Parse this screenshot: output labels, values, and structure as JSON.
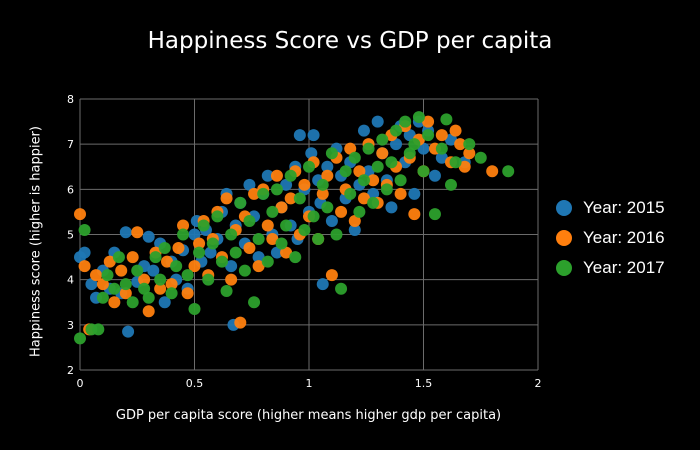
{
  "chart_data": {
    "type": "scatter",
    "title": "Happiness Score vs GDP per capita",
    "xlabel": "GDP per capita score (higher means higher gdp per capita)",
    "ylabel": "Happiness score (higher is happier)",
    "xlim": [
      0,
      2
    ],
    "ylim": [
      2,
      8
    ],
    "xticks": [
      "0",
      "0.5",
      "1",
      "1.5",
      "2"
    ],
    "yticks": [
      "2",
      "3",
      "4",
      "5",
      "6",
      "7",
      "8"
    ],
    "grid": true,
    "legend_position": "right",
    "series": [
      {
        "name": "Year: 2015",
        "color": "#1f77b4",
        "points": [
          [
            0.0,
            4.5
          ],
          [
            0.02,
            4.6
          ],
          [
            0.05,
            3.9
          ],
          [
            0.07,
            3.6
          ],
          [
            0.1,
            4.2
          ],
          [
            0.13,
            3.8
          ],
          [
            0.15,
            4.6
          ],
          [
            0.18,
            3.7
          ],
          [
            0.2,
            5.05
          ],
          [
            0.21,
            2.85
          ],
          [
            0.25,
            3.95
          ],
          [
            0.28,
            4.3
          ],
          [
            0.3,
            4.95
          ],
          [
            0.32,
            4.2
          ],
          [
            0.35,
            4.8
          ],
          [
            0.37,
            3.5
          ],
          [
            0.4,
            4.4
          ],
          [
            0.42,
            4.0
          ],
          [
            0.45,
            4.65
          ],
          [
            0.47,
            3.8
          ],
          [
            0.5,
            5.0
          ],
          [
            0.51,
            5.3
          ],
          [
            0.53,
            4.4
          ],
          [
            0.55,
            5.1
          ],
          [
            0.57,
            4.6
          ],
          [
            0.6,
            4.9
          ],
          [
            0.62,
            5.5
          ],
          [
            0.64,
            5.9
          ],
          [
            0.66,
            4.3
          ],
          [
            0.67,
            3.0
          ],
          [
            0.68,
            5.2
          ],
          [
            0.7,
            5.7
          ],
          [
            0.72,
            4.8
          ],
          [
            0.74,
            6.1
          ],
          [
            0.76,
            5.4
          ],
          [
            0.78,
            4.5
          ],
          [
            0.8,
            5.9
          ],
          [
            0.82,
            6.3
          ],
          [
            0.84,
            5.0
          ],
          [
            0.86,
            4.6
          ],
          [
            0.88,
            5.6
          ],
          [
            0.9,
            6.1
          ],
          [
            0.92,
            5.2
          ],
          [
            0.94,
            6.5
          ],
          [
            0.95,
            4.9
          ],
          [
            0.96,
            7.2
          ],
          [
            0.98,
            6.0
          ],
          [
            1.0,
            5.5
          ],
          [
            1.01,
            6.8
          ],
          [
            1.02,
            7.2
          ],
          [
            1.04,
            6.2
          ],
          [
            1.05,
            5.7
          ],
          [
            1.06,
            3.9
          ],
          [
            1.08,
            6.5
          ],
          [
            1.1,
            5.3
          ],
          [
            1.12,
            6.9
          ],
          [
            1.14,
            6.3
          ],
          [
            1.16,
            5.8
          ],
          [
            1.18,
            6.6
          ],
          [
            1.2,
            5.1
          ],
          [
            1.22,
            6.1
          ],
          [
            1.24,
            7.3
          ],
          [
            1.26,
            6.4
          ],
          [
            1.28,
            5.9
          ],
          [
            1.3,
            7.5
          ],
          [
            1.32,
            6.8
          ],
          [
            1.34,
            6.2
          ],
          [
            1.36,
            5.6
          ],
          [
            1.38,
            7.0
          ],
          [
            1.4,
            7.4
          ],
          [
            1.42,
            6.6
          ],
          [
            1.44,
            7.2
          ],
          [
            1.46,
            5.9
          ],
          [
            1.48,
            7.5
          ],
          [
            1.5,
            6.9
          ],
          [
            1.52,
            7.3
          ],
          [
            1.55,
            6.3
          ],
          [
            1.58,
            6.7
          ],
          [
            1.62,
            7.1
          ],
          [
            1.68,
            6.6
          ]
        ]
      },
      {
        "name": "Year: 2016",
        "color": "#ff7f0e",
        "points": [
          [
            0.0,
            5.45
          ],
          [
            0.02,
            4.3
          ],
          [
            0.04,
            2.9
          ],
          [
            0.07,
            4.1
          ],
          [
            0.1,
            3.9
          ],
          [
            0.13,
            4.4
          ],
          [
            0.15,
            3.5
          ],
          [
            0.18,
            4.2
          ],
          [
            0.2,
            3.7
          ],
          [
            0.23,
            4.5
          ],
          [
            0.25,
            5.05
          ],
          [
            0.28,
            4.0
          ],
          [
            0.3,
            3.3
          ],
          [
            0.33,
            4.6
          ],
          [
            0.35,
            3.8
          ],
          [
            0.38,
            4.4
          ],
          [
            0.4,
            3.9
          ],
          [
            0.43,
            4.7
          ],
          [
            0.45,
            5.2
          ],
          [
            0.47,
            3.7
          ],
          [
            0.5,
            4.3
          ],
          [
            0.52,
            4.8
          ],
          [
            0.54,
            5.3
          ],
          [
            0.56,
            4.1
          ],
          [
            0.58,
            4.9
          ],
          [
            0.6,
            5.5
          ],
          [
            0.62,
            4.5
          ],
          [
            0.64,
            5.8
          ],
          [
            0.66,
            4.0
          ],
          [
            0.68,
            5.1
          ],
          [
            0.7,
            3.05
          ],
          [
            0.72,
            5.4
          ],
          [
            0.74,
            4.7
          ],
          [
            0.76,
            5.9
          ],
          [
            0.78,
            4.3
          ],
          [
            0.8,
            6.0
          ],
          [
            0.82,
            5.2
          ],
          [
            0.84,
            4.9
          ],
          [
            0.86,
            6.3
          ],
          [
            0.88,
            5.6
          ],
          [
            0.9,
            4.6
          ],
          [
            0.92,
            5.8
          ],
          [
            0.94,
            6.4
          ],
          [
            0.96,
            5.0
          ],
          [
            0.98,
            6.1
          ],
          [
            1.0,
            5.4
          ],
          [
            1.02,
            6.6
          ],
          [
            1.04,
            4.9
          ],
          [
            1.06,
            5.9
          ],
          [
            1.08,
            6.3
          ],
          [
            1.1,
            4.1
          ],
          [
            1.12,
            6.7
          ],
          [
            1.14,
            5.5
          ],
          [
            1.16,
            6.0
          ],
          [
            1.18,
            6.9
          ],
          [
            1.2,
            5.3
          ],
          [
            1.22,
            6.4
          ],
          [
            1.24,
            5.8
          ],
          [
            1.26,
            7.0
          ],
          [
            1.28,
            6.2
          ],
          [
            1.3,
            5.7
          ],
          [
            1.32,
            6.8
          ],
          [
            1.34,
            6.1
          ],
          [
            1.36,
            7.2
          ],
          [
            1.38,
            6.5
          ],
          [
            1.4,
            5.9
          ],
          [
            1.42,
            7.4
          ],
          [
            1.44,
            6.7
          ],
          [
            1.46,
            5.45
          ],
          [
            1.48,
            7.1
          ],
          [
            1.5,
            6.4
          ],
          [
            1.52,
            7.5
          ],
          [
            1.55,
            6.9
          ],
          [
            1.58,
            7.2
          ],
          [
            1.62,
            6.6
          ],
          [
            1.66,
            7.0
          ],
          [
            1.7,
            6.8
          ],
          [
            1.8,
            6.4
          ],
          [
            1.68,
            6.5
          ],
          [
            1.64,
            7.3
          ]
        ]
      },
      {
        "name": "Year: 2017",
        "color": "#2ca02c",
        "points": [
          [
            0.0,
            2.7
          ],
          [
            0.02,
            5.1
          ],
          [
            0.05,
            2.9
          ],
          [
            0.08,
            2.9
          ],
          [
            0.1,
            3.6
          ],
          [
            0.12,
            4.1
          ],
          [
            0.15,
            3.8
          ],
          [
            0.17,
            4.5
          ],
          [
            0.2,
            3.9
          ],
          [
            0.23,
            3.5
          ],
          [
            0.25,
            4.2
          ],
          [
            0.28,
            3.8
          ],
          [
            0.3,
            3.6
          ],
          [
            0.33,
            4.5
          ],
          [
            0.35,
            4.0
          ],
          [
            0.37,
            4.7
          ],
          [
            0.4,
            3.7
          ],
          [
            0.42,
            4.3
          ],
          [
            0.45,
            5.0
          ],
          [
            0.47,
            4.1
          ],
          [
            0.5,
            3.35
          ],
          [
            0.52,
            4.6
          ],
          [
            0.54,
            5.2
          ],
          [
            0.56,
            4.0
          ],
          [
            0.58,
            4.8
          ],
          [
            0.6,
            5.4
          ],
          [
            0.62,
            4.4
          ],
          [
            0.64,
            3.75
          ],
          [
            0.66,
            5.0
          ],
          [
            0.68,
            4.6
          ],
          [
            0.7,
            5.7
          ],
          [
            0.72,
            4.2
          ],
          [
            0.74,
            5.3
          ],
          [
            0.76,
            3.5
          ],
          [
            0.78,
            4.9
          ],
          [
            0.8,
            5.9
          ],
          [
            0.82,
            4.4
          ],
          [
            0.84,
            5.5
          ],
          [
            0.86,
            6.0
          ],
          [
            0.88,
            4.8
          ],
          [
            0.9,
            5.2
          ],
          [
            0.92,
            6.3
          ],
          [
            0.94,
            4.5
          ],
          [
            0.96,
            5.8
          ],
          [
            0.98,
            5.1
          ],
          [
            1.0,
            6.5
          ],
          [
            1.02,
            5.4
          ],
          [
            1.04,
            4.9
          ],
          [
            1.06,
            6.1
          ],
          [
            1.08,
            5.6
          ],
          [
            1.1,
            6.8
          ],
          [
            1.12,
            5.0
          ],
          [
            1.14,
            3.8
          ],
          [
            1.16,
            6.4
          ],
          [
            1.18,
            5.9
          ],
          [
            1.2,
            6.7
          ],
          [
            1.22,
            5.5
          ],
          [
            1.24,
            6.2
          ],
          [
            1.26,
            6.9
          ],
          [
            1.28,
            5.7
          ],
          [
            1.3,
            6.5
          ],
          [
            1.32,
            7.1
          ],
          [
            1.34,
            6.0
          ],
          [
            1.36,
            6.6
          ],
          [
            1.38,
            7.3
          ],
          [
            1.4,
            6.2
          ],
          [
            1.42,
            7.5
          ],
          [
            1.44,
            6.8
          ],
          [
            1.46,
            7.0
          ],
          [
            1.48,
            7.6
          ],
          [
            1.5,
            6.4
          ],
          [
            1.52,
            7.2
          ],
          [
            1.55,
            5.45
          ],
          [
            1.58,
            6.9
          ],
          [
            1.62,
            6.1
          ],
          [
            1.64,
            6.6
          ],
          [
            1.7,
            7.0
          ],
          [
            1.75,
            6.7
          ],
          [
            1.87,
            6.4
          ],
          [
            1.6,
            7.55
          ]
        ]
      }
    ]
  }
}
